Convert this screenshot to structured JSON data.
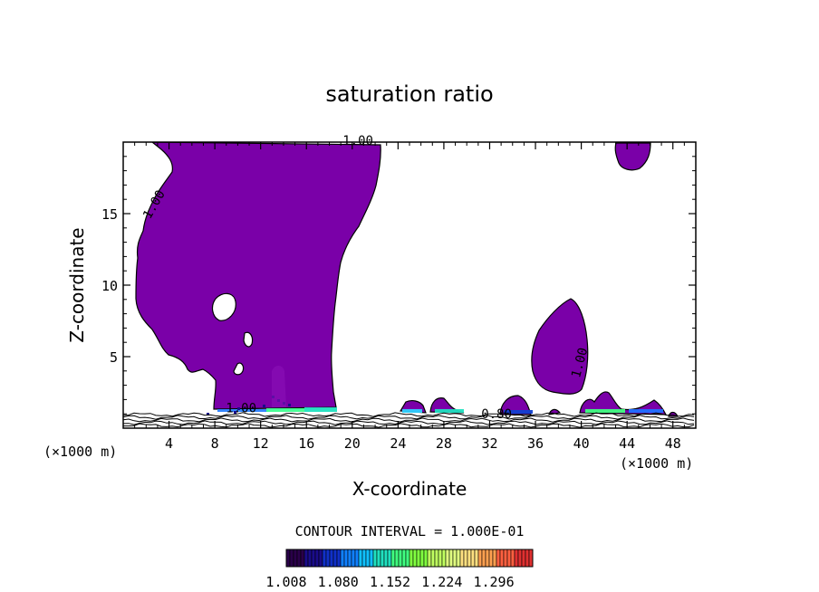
{
  "chart_data": {
    "type": "heatmap",
    "title": "saturation ratio",
    "xlabel": "X-coordinate",
    "ylabel": "Z-coordinate",
    "x_unit_left": "(×1000 m)",
    "x_unit_right": "(×1000 m)",
    "xlim": [
      0,
      50
    ],
    "ylim": [
      0,
      20
    ],
    "x_ticks": [
      4,
      8,
      12,
      16,
      20,
      24,
      28,
      32,
      36,
      40,
      44,
      48
    ],
    "x_tick_labels": [
      "4",
      "8",
      "12",
      "16",
      "20",
      "24",
      "28",
      "32",
      "36",
      "40",
      "44",
      "48"
    ],
    "y_ticks": [
      5,
      10,
      15
    ],
    "y_tick_labels": [
      "5",
      "10",
      "15"
    ],
    "contour_labels": [
      {
        "text": "1.00",
        "x": 20.5,
        "z": 19.8
      },
      {
        "text": "1.00",
        "x": 3.0,
        "z": 15.5
      },
      {
        "text": "1.00",
        "x": 40.2,
        "z": 4.5
      },
      {
        "text": "1.00",
        "x": 10.3,
        "z": 1.1
      },
      {
        "text": "0.80",
        "x": 32.6,
        "z": 0.7
      }
    ],
    "contour_interval_label": "CONTOUR INTERVAL = 1.000E-01",
    "colorbar": {
      "min": 1.008,
      "max": 1.35,
      "tick_labels": [
        "1.008",
        "1.080",
        "1.152",
        "1.224",
        "1.296"
      ],
      "colors": [
        "#2a004a",
        "#1a0c8a",
        "#1030c8",
        "#1080ff",
        "#10c0ff",
        "#20e0c0",
        "#40ff80",
        "#80ff40",
        "#c0ff60",
        "#e0ff80",
        "#ffe080",
        "#ffa050",
        "#ff6040",
        "#e03030"
      ]
    },
    "fill_color": "#7a00a8",
    "grid": false
  }
}
